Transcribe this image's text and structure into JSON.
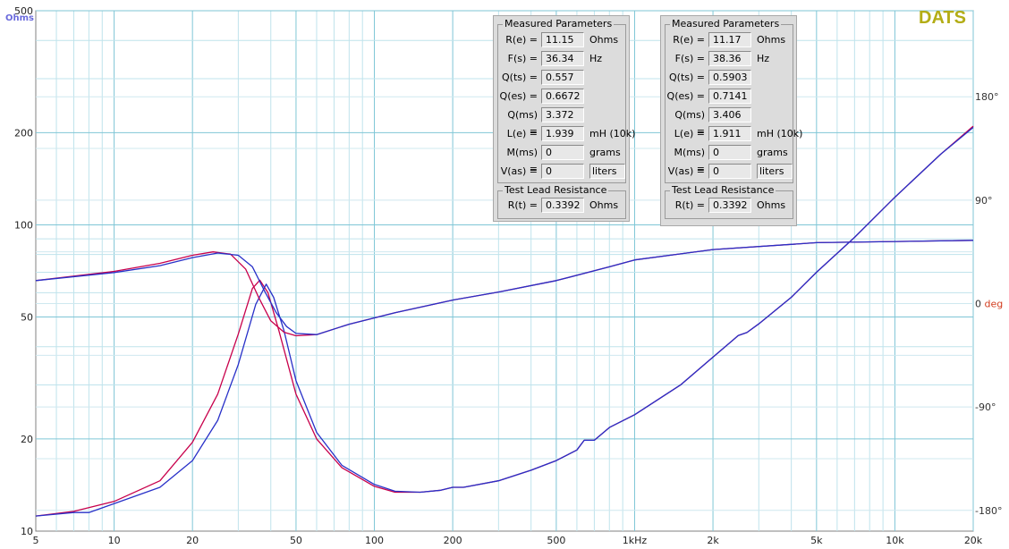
{
  "brand": "DATS",
  "chart_data": {
    "type": "line",
    "x_scale": "log",
    "xlim": [
      5,
      20000
    ],
    "x_ticks": [
      {
        "v": 5,
        "label": "5"
      },
      {
        "v": 10,
        "label": "10"
      },
      {
        "v": 20,
        "label": "20"
      },
      {
        "v": 50,
        "label": "50"
      },
      {
        "v": 100,
        "label": "100"
      },
      {
        "v": 200,
        "label": "200"
      },
      {
        "v": 500,
        "label": "500"
      },
      {
        "v": 1000,
        "label": "1kHz"
      },
      {
        "v": 2000,
        "label": "2k"
      },
      {
        "v": 5000,
        "label": "5k"
      },
      {
        "v": 10000,
        "label": "10k"
      },
      {
        "v": 20000,
        "label": "20k"
      }
    ],
    "y_scale": "log",
    "ylabel": "Ohms",
    "ylim": [
      10,
      500
    ],
    "y_ticks": [
      {
        "v": 10,
        "label": "10"
      },
      {
        "v": 20,
        "label": "20"
      },
      {
        "v": 50,
        "label": "50"
      },
      {
        "v": 100,
        "label": "100"
      },
      {
        "v": 200,
        "label": "200"
      },
      {
        "v": 500,
        "label": "500"
      }
    ],
    "phase_axis": {
      "label": "deg",
      "ticks": [
        {
          "v": 180,
          "label": "180°"
        },
        {
          "v": 90,
          "label": "90°"
        },
        {
          "v": 0,
          "label": "0"
        },
        {
          "v": -90,
          "label": "-90°"
        },
        {
          "v": -180,
          "label": "-180°"
        }
      ]
    },
    "grid": true,
    "series": [
      {
        "kind": "impedance",
        "color": "#c8004b",
        "points": [
          [
            5,
            11.2
          ],
          [
            7,
            11.6
          ],
          [
            10,
            12.5
          ],
          [
            15,
            14.6
          ],
          [
            20,
            19.5
          ],
          [
            25,
            28
          ],
          [
            30,
            44
          ],
          [
            34,
            62
          ],
          [
            36.3,
            66
          ],
          [
            39,
            60
          ],
          [
            43,
            45
          ],
          [
            50,
            28
          ],
          [
            60,
            20
          ],
          [
            75,
            16.1
          ],
          [
            100,
            14
          ],
          [
            120,
            13.4
          ],
          [
            150,
            13.4
          ],
          [
            180,
            13.6
          ],
          [
            200,
            13.9
          ],
          [
            220,
            13.9
          ],
          [
            300,
            14.6
          ],
          [
            400,
            15.8
          ],
          [
            500,
            17
          ],
          [
            600,
            18.4
          ],
          [
            640,
            19.8
          ],
          [
            700,
            19.8
          ],
          [
            800,
            21.8
          ],
          [
            1000,
            24
          ],
          [
            1500,
            30
          ],
          [
            2000,
            37
          ],
          [
            2500,
            43.5
          ],
          [
            2700,
            44.5
          ],
          [
            3000,
            47.5
          ],
          [
            4000,
            58
          ],
          [
            5000,
            70
          ],
          [
            7000,
            91
          ],
          [
            10000,
            123
          ],
          [
            15000,
            170
          ],
          [
            20000,
            210
          ]
        ]
      },
      {
        "kind": "impedance",
        "color": "#2830c8",
        "points": [
          [
            5,
            11.2
          ],
          [
            7,
            11.5
          ],
          [
            8,
            11.5
          ],
          [
            10,
            12.3
          ],
          [
            15,
            13.9
          ],
          [
            20,
            17
          ],
          [
            25,
            23
          ],
          [
            30,
            35
          ],
          [
            35,
            55
          ],
          [
            38.4,
            64
          ],
          [
            41,
            58
          ],
          [
            45,
            45
          ],
          [
            50,
            31
          ],
          [
            60,
            21
          ],
          [
            75,
            16.4
          ],
          [
            100,
            14.2
          ],
          [
            120,
            13.5
          ],
          [
            150,
            13.4
          ],
          [
            180,
            13.6
          ],
          [
            200,
            13.9
          ],
          [
            220,
            13.9
          ],
          [
            300,
            14.6
          ],
          [
            400,
            15.8
          ],
          [
            500,
            17
          ],
          [
            600,
            18.4
          ],
          [
            640,
            19.8
          ],
          [
            700,
            19.8
          ],
          [
            800,
            21.8
          ],
          [
            1000,
            24
          ],
          [
            1500,
            30
          ],
          [
            2000,
            37
          ],
          [
            2500,
            43.5
          ],
          [
            2700,
            44.5
          ],
          [
            3000,
            47.5
          ],
          [
            4000,
            58
          ],
          [
            5000,
            70
          ],
          [
            7000,
            91
          ],
          [
            10000,
            123
          ],
          [
            15000,
            170
          ],
          [
            20000,
            208
          ]
        ]
      },
      {
        "kind": "phase",
        "color": "#c8004b",
        "points": [
          [
            5,
            20
          ],
          [
            10,
            28
          ],
          [
            15,
            35
          ],
          [
            20,
            42
          ],
          [
            24,
            45
          ],
          [
            28,
            43
          ],
          [
            32,
            30
          ],
          [
            36,
            5
          ],
          [
            40,
            -15
          ],
          [
            45,
            -25
          ],
          [
            50,
            -28
          ],
          [
            60,
            -27
          ],
          [
            80,
            -18
          ],
          [
            120,
            -8
          ],
          [
            200,
            3
          ],
          [
            300,
            10
          ],
          [
            500,
            20
          ],
          [
            800,
            32
          ],
          [
            1000,
            38
          ],
          [
            2000,
            47
          ],
          [
            5000,
            53
          ],
          [
            10000,
            54
          ],
          [
            20000,
            55
          ]
        ]
      },
      {
        "kind": "phase",
        "color": "#2830c8",
        "points": [
          [
            5,
            20
          ],
          [
            10,
            27
          ],
          [
            15,
            33
          ],
          [
            20,
            40
          ],
          [
            25,
            44
          ],
          [
            30,
            42
          ],
          [
            34,
            32
          ],
          [
            38,
            10
          ],
          [
            42,
            -8
          ],
          [
            46,
            -20
          ],
          [
            50,
            -26
          ],
          [
            60,
            -27
          ],
          [
            80,
            -18
          ],
          [
            120,
            -8
          ],
          [
            200,
            3
          ],
          [
            300,
            10
          ],
          [
            500,
            20
          ],
          [
            800,
            32
          ],
          [
            1000,
            38
          ],
          [
            2000,
            47
          ],
          [
            5000,
            53
          ],
          [
            10000,
            54
          ],
          [
            20000,
            55
          ]
        ]
      }
    ]
  },
  "panels": [
    {
      "title": "Measured Parameters",
      "rows": [
        {
          "label": "R(e) =",
          "value": "11.15",
          "unit": "Ohms"
        },
        {
          "label": "F(s) =",
          "value": "36.34",
          "unit": "Hz"
        },
        {
          "label": "Q(ts) =",
          "value": "0.557",
          "unit": ""
        },
        {
          "label": "Q(es) =",
          "value": "0.6672",
          "unit": ""
        },
        {
          "label": "Q(ms) =",
          "value": "3.372",
          "unit": ""
        },
        {
          "label": "L(e) =",
          "value": "1.939",
          "unit": "mH (10k)"
        },
        {
          "label": "M(ms) =",
          "value": "0",
          "unit": "grams"
        },
        {
          "label": "V(as) =",
          "value": "0",
          "unit": "liters"
        }
      ],
      "lead_title": "Test Lead Resistance",
      "lead": {
        "label": "R(t) =",
        "value": "0.3392",
        "unit": "Ohms"
      }
    },
    {
      "title": "Measured Parameters",
      "rows": [
        {
          "label": "R(e) =",
          "value": "11.17",
          "unit": "Ohms"
        },
        {
          "label": "F(s) =",
          "value": "38.36",
          "unit": "Hz"
        },
        {
          "label": "Q(ts) =",
          "value": "0.5903",
          "unit": ""
        },
        {
          "label": "Q(es) =",
          "value": "0.7141",
          "unit": ""
        },
        {
          "label": "Q(ms) =",
          "value": "3.406",
          "unit": ""
        },
        {
          "label": "L(e) =",
          "value": "1.911",
          "unit": "mH (10k)"
        },
        {
          "label": "M(ms) =",
          "value": "0",
          "unit": "grams"
        },
        {
          "label": "V(as) =",
          "value": "0",
          "unit": "liters"
        }
      ],
      "lead_title": "Test Lead Resistance",
      "lead": {
        "label": "R(t) =",
        "value": "0.3392",
        "unit": "Ohms"
      }
    }
  ]
}
